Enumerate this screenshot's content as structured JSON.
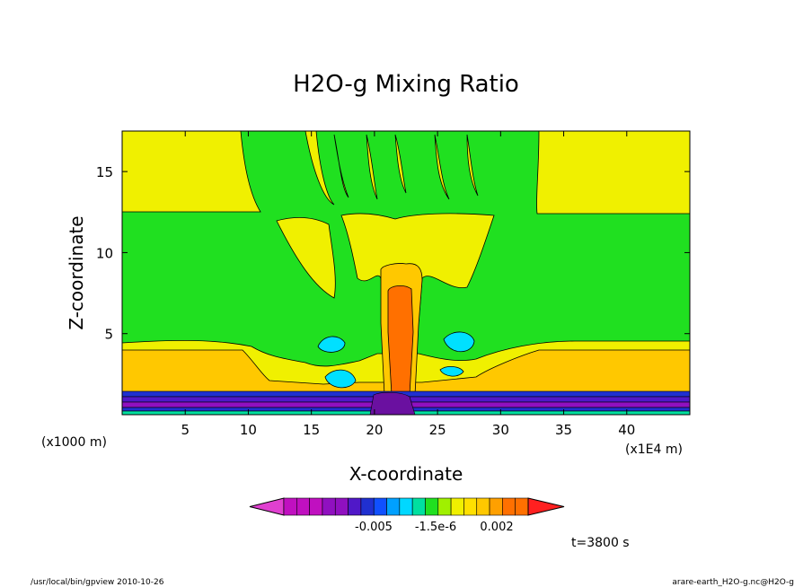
{
  "chart_data": {
    "type": "contour",
    "title": "H2O-g Mixing Ratio",
    "xlabel": "X-coordinate",
    "ylabel": "Z-coordinate",
    "x_unit_label": "(x1000 m)",
    "x_scale_label": "(x1E4 m)",
    "x_ticks": [
      "5",
      "10",
      "15",
      "20",
      "25",
      "30",
      "35",
      "40"
    ],
    "y_ticks": [
      "5",
      "10",
      "15"
    ],
    "xlim": [
      0,
      45
    ],
    "ylim": [
      0,
      17.5
    ],
    "colorbar": {
      "labels": [
        "-0.005",
        "-1.5e-6",
        "0.002"
      ],
      "colors": [
        "#e040d0",
        "#c010c0",
        "#c010c0",
        "#c010c0",
        "#9010c0",
        "#9010c0",
        "#5018c8",
        "#2030d0",
        "#1050ff",
        "#00a0ff",
        "#00d8ff",
        "#00e0a0",
        "#20e020",
        "#a0f000",
        "#f0f000",
        "#ffe000",
        "#ffc800",
        "#ffa000",
        "#ff7000",
        "#ff7000",
        "#ff2020"
      ]
    },
    "time_label": "t=3800 s"
  },
  "footer": {
    "left": "/usr/local/bin/gpview  2010-10-26",
    "right": "arare-earth_H2O-g.nc@H2O-g"
  },
  "colors": {
    "green": "#20e020",
    "yellow": "#f0f000",
    "light_orange": "#ffc800",
    "orange": "#ff7000",
    "cyan": "#00e0ff"
  }
}
